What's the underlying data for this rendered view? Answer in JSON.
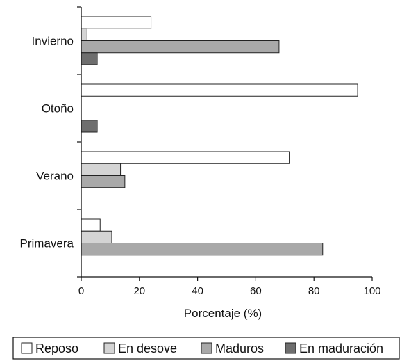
{
  "chart_data": {
    "type": "bar",
    "orientation": "horizontal",
    "title": "",
    "xlabel": "Porcentaje (%)",
    "ylabel": "",
    "xlim": [
      0,
      100
    ],
    "xticks": [
      "0",
      "20",
      "40",
      "60",
      "80",
      "100"
    ],
    "categories": [
      "Invierno",
      "Otoño",
      "Verano",
      "Primavera"
    ],
    "series": [
      {
        "name": "Reposo",
        "values": [
          24,
          95,
          71.5,
          6.5
        ],
        "color": "#ffffff"
      },
      {
        "name": "En desove",
        "values": [
          2,
          0,
          13.5,
          10.5
        ],
        "color": "#d4d4d4"
      },
      {
        "name": "Maduros",
        "values": [
          68,
          0,
          15,
          83
        ],
        "color": "#a9a9a9"
      },
      {
        "name": "En maduración",
        "values": [
          5.5,
          5.5,
          0,
          0
        ],
        "color": "#6e6e6e"
      }
    ],
    "grid": false,
    "legend_position": "bottom"
  }
}
